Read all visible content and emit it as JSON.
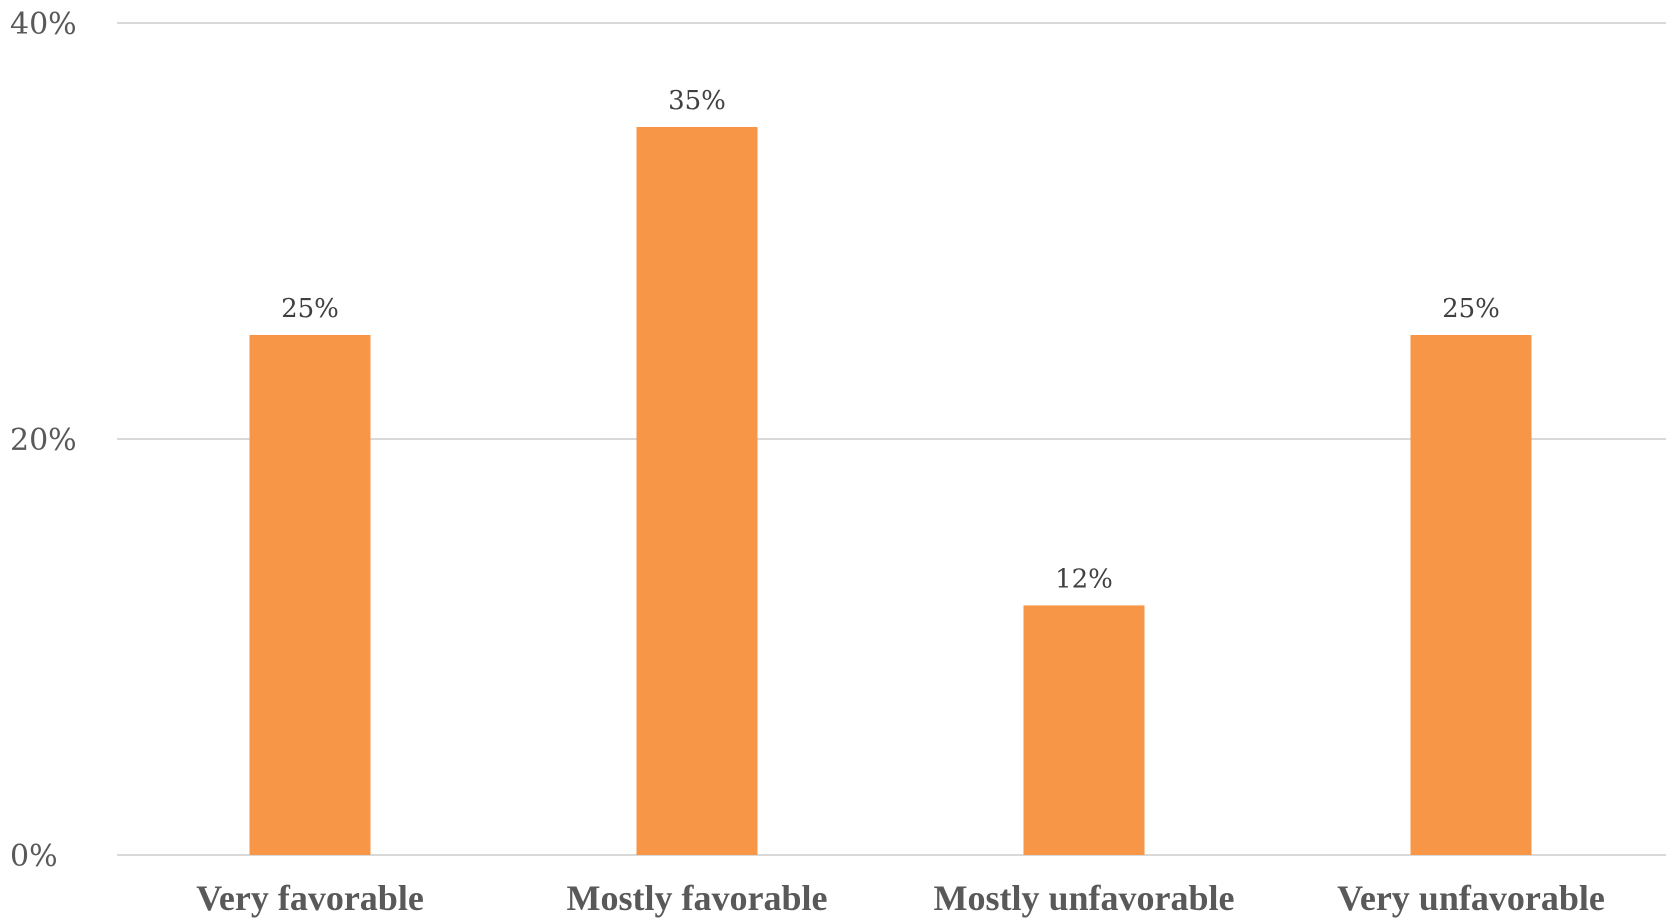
{
  "chart_data": {
    "type": "bar",
    "title": "",
    "xlabel": "",
    "ylabel": "",
    "categories": [
      "Very favorable",
      "Mostly favorable",
      "Mostly unfavorable",
      "Very unfavorable"
    ],
    "values": [
      25,
      35,
      12,
      25
    ],
    "value_labels": [
      "25%",
      "35%",
      "12%",
      "25%"
    ],
    "ylim": [
      0,
      40
    ],
    "y_ticks": [
      0,
      20,
      40
    ],
    "y_tick_labels": [
      "0%",
      "20%",
      "40%"
    ],
    "grid": true,
    "legend": "none",
    "colors": {
      "bar": "#F79646",
      "gridline": "#d9d9d9",
      "tick_text": "#595959",
      "data_label_text": "#404040"
    }
  }
}
